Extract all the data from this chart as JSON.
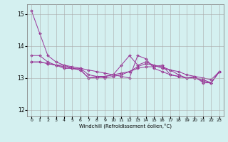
{
  "xlabel": "Windchill (Refroidissement éolien,°C)",
  "ylabel": "",
  "background_color": "#d4f0f0",
  "line_color": "#993399",
  "grid_color": "#aaaaaa",
  "xlim": [
    -0.5,
    23.5
  ],
  "ylim": [
    11.8,
    15.3
  ],
  "yticks": [
    12,
    13,
    14,
    15
  ],
  "xticks": [
    0,
    1,
    2,
    3,
    4,
    5,
    6,
    7,
    8,
    9,
    10,
    11,
    12,
    13,
    14,
    15,
    16,
    17,
    18,
    19,
    20,
    21,
    22,
    23
  ],
  "series": [
    [
      15.1,
      14.4,
      13.7,
      13.5,
      13.4,
      13.35,
      13.3,
      13.25,
      13.2,
      13.15,
      13.1,
      13.05,
      13.0,
      13.7,
      13.6,
      13.3,
      13.2,
      13.1,
      13.05,
      13.0,
      13.0,
      12.95,
      12.85,
      13.2
    ],
    [
      13.7,
      13.7,
      13.5,
      13.4,
      13.35,
      13.3,
      13.25,
      13.0,
      13.0,
      13.05,
      13.1,
      13.4,
      13.7,
      13.4,
      13.5,
      13.4,
      13.35,
      13.25,
      13.1,
      13.0,
      13.05,
      12.85,
      12.85,
      13.2
    ],
    [
      13.5,
      13.5,
      13.45,
      13.4,
      13.4,
      13.3,
      13.3,
      13.1,
      13.05,
      13.0,
      13.05,
      13.1,
      13.2,
      13.35,
      13.45,
      13.4,
      13.3,
      13.25,
      13.2,
      13.1,
      13.05,
      13.0,
      12.95,
      13.2
    ],
    [
      13.5,
      13.5,
      13.45,
      13.4,
      13.3,
      13.3,
      13.25,
      13.0,
      13.05,
      13.05,
      13.1,
      13.15,
      13.2,
      13.3,
      13.35,
      13.35,
      13.4,
      13.1,
      13.05,
      13.0,
      13.0,
      12.9,
      12.85,
      13.2
    ]
  ]
}
